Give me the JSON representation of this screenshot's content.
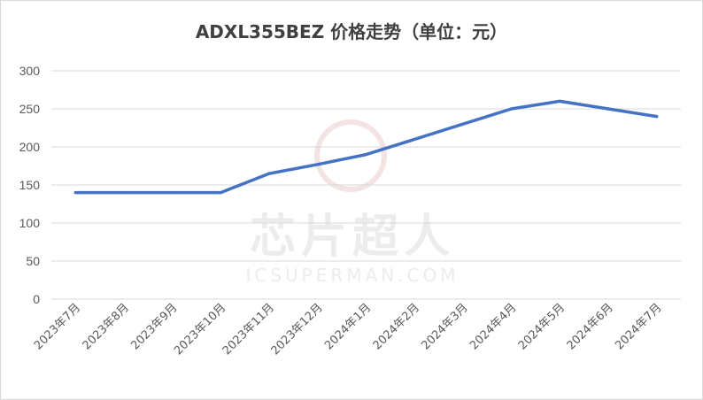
{
  "chart_data": {
    "type": "line",
    "title": "ADXL355BEZ 价格走势（单位：元）",
    "categories": [
      "2023年7月",
      "2023年8月",
      "2023年9月",
      "2023年10月",
      "2023年11月",
      "2023年12月",
      "2024年1月",
      "2024年2月",
      "2024年3月",
      "2024年4月",
      "2024年5月",
      "2024年6月",
      "2024年7月"
    ],
    "series": [
      {
        "values": [
          140,
          140,
          140,
          140,
          165,
          177,
          190,
          210,
          230,
          250,
          260,
          250,
          240
        ]
      }
    ],
    "ylim": [
      0,
      300
    ],
    "yticks": [
      0,
      50,
      100,
      150,
      200,
      250,
      300
    ],
    "grid": true,
    "line_color": "#4472C4"
  },
  "watermark": {
    "cn": "芯片超人",
    "en": "ICSUPERMAN.COM"
  }
}
